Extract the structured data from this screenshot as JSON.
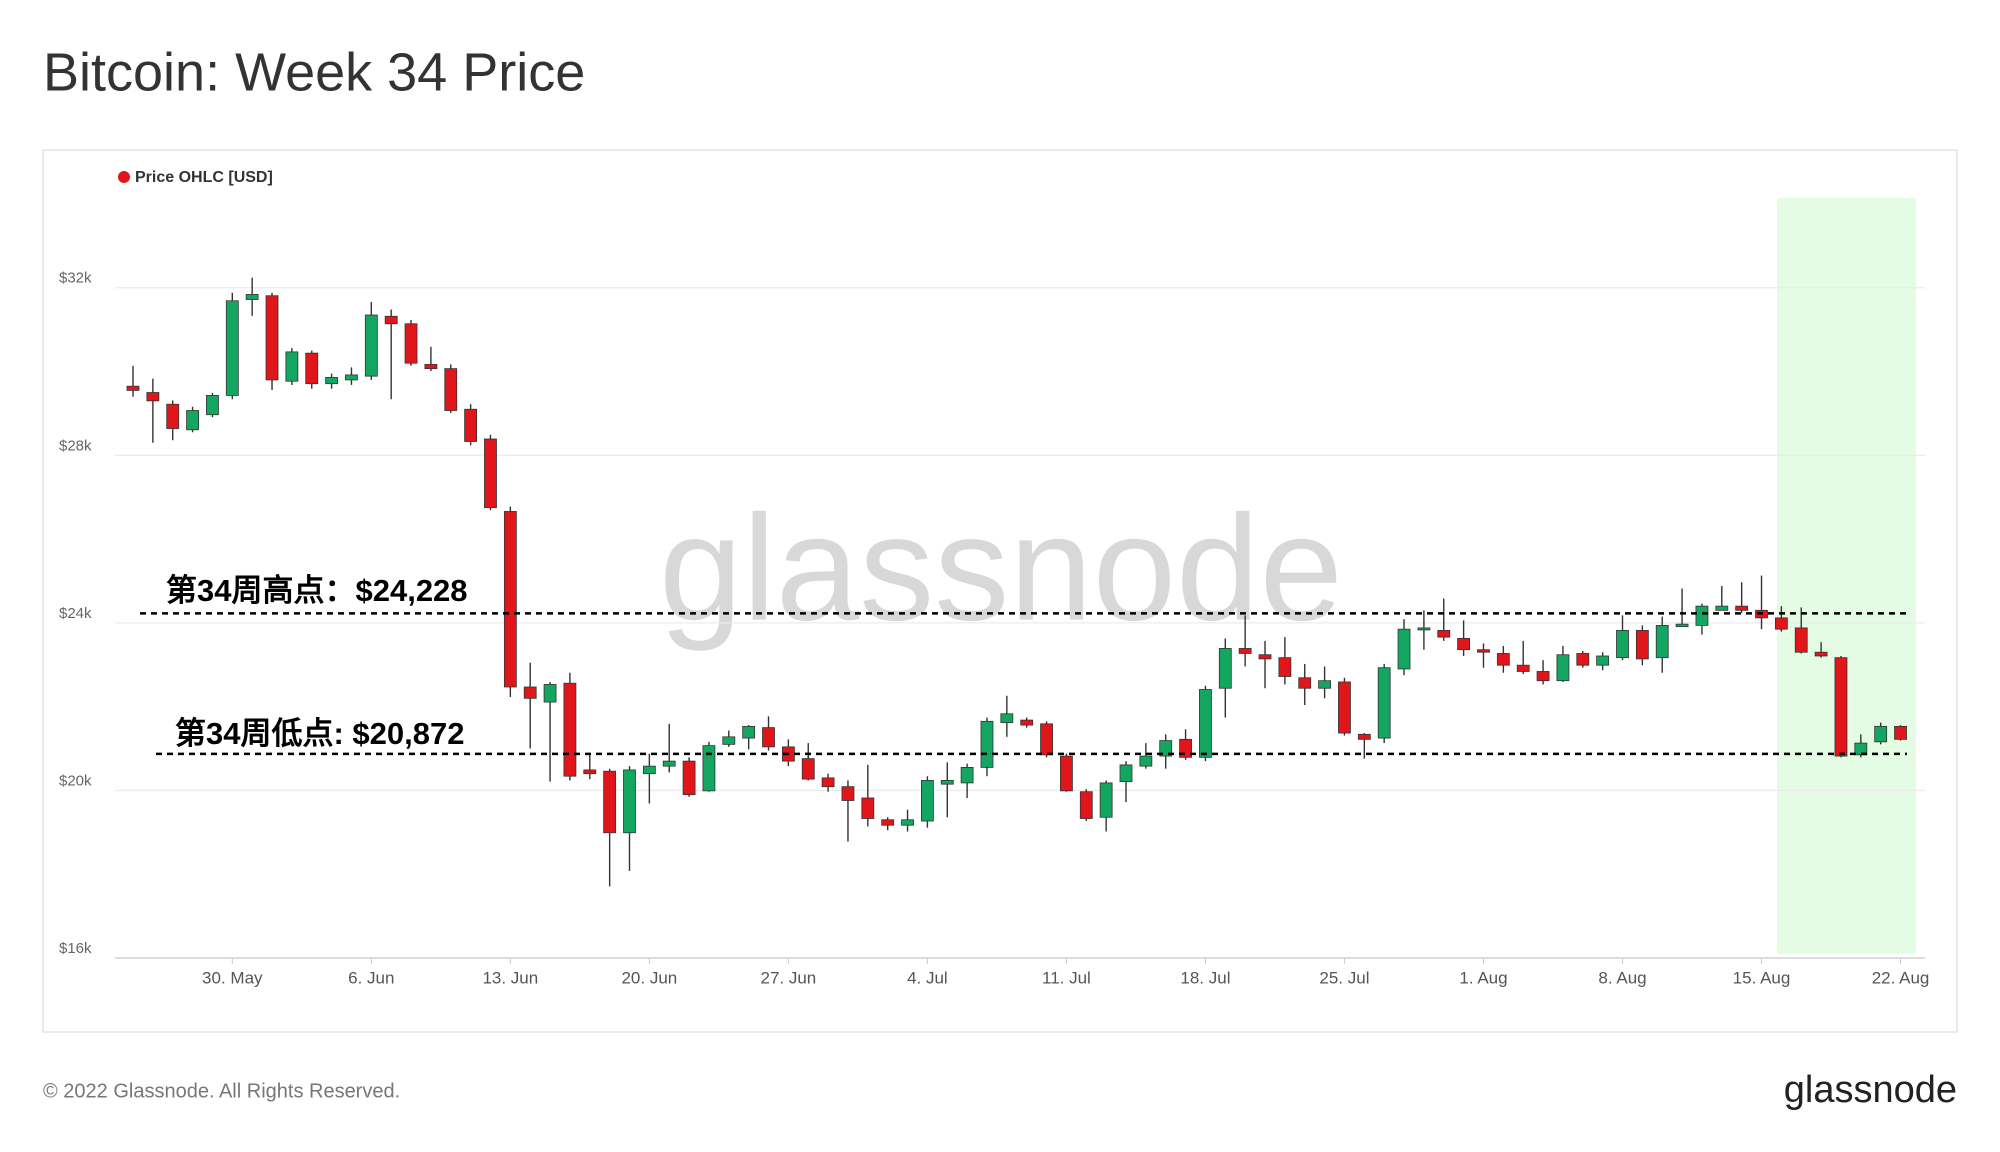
{
  "chart_data": {
    "type": "candlestick",
    "title": "Bitcoin: Week 34 Price",
    "watermark": "glassnode",
    "footer": "© 2022 Glassnode. All Rights Reserved.",
    "brand": "glassnode",
    "legend": "top-left",
    "grid": true,
    "up_color": "#13a661",
    "down_color": "#e0161b",
    "ylim": [
      16000,
      34000
    ],
    "yticks": [
      {
        "value": 16000,
        "label": "$16k"
      },
      {
        "value": 20000,
        "label": "$20k"
      },
      {
        "value": 24000,
        "label": "$24k"
      },
      {
        "value": 28000,
        "label": "$28k"
      },
      {
        "value": 32000,
        "label": "$32k"
      }
    ],
    "annotations": [
      {
        "text": "第34周高点：$24,228",
        "value": 24228
      },
      {
        "text": "第34周低点: $20,872",
        "value": 20872
      }
    ],
    "categories": [
      null,
      null,
      null,
      null,
      null,
      "30. May",
      null,
      null,
      null,
      null,
      null,
      null,
      "6. Jun",
      null,
      null,
      null,
      null,
      null,
      null,
      "13. Jun",
      null,
      null,
      null,
      null,
      null,
      null,
      "20. Jun",
      null,
      null,
      null,
      null,
      null,
      null,
      "27. Jun",
      null,
      null,
      null,
      null,
      null,
      null,
      "4. Jul",
      null,
      null,
      null,
      null,
      null,
      null,
      "11. Jul",
      null,
      null,
      null,
      null,
      null,
      null,
      "18. Jul",
      null,
      null,
      null,
      null,
      null,
      null,
      "25. Jul",
      null,
      null,
      null,
      null,
      null,
      null,
      "1. Aug",
      null,
      null,
      null,
      null,
      null,
      null,
      "8. Aug",
      null,
      null,
      null,
      null,
      null,
      null,
      "15. Aug",
      null,
      null,
      null,
      null,
      null,
      null,
      "22. Aug"
    ],
    "series": [
      {
        "name": "Price OHLC [USD]",
        "color": "#e0161b",
        "open": [
          29650,
          29500,
          29220,
          28610,
          28970,
          29430,
          31720,
          31810,
          29770,
          30440,
          29710,
          29800,
          29890,
          31320,
          31140,
          30170,
          30070,
          29100,
          28390,
          26660,
          22470,
          22110,
          22560,
          20490,
          20460,
          18990,
          20400,
          20580,
          20700,
          19990,
          21100,
          21250,
          21500,
          21040,
          20760,
          20300,
          20090,
          19820,
          19300,
          19170,
          19270,
          20150,
          20180,
          20550,
          21620,
          21680,
          21590,
          20820,
          19970,
          19360,
          20210,
          20580,
          20820,
          21220,
          20790,
          22440,
          23390,
          23240,
          23170,
          22690,
          22440,
          22590,
          21340,
          21250,
          22900,
          23850,
          23820,
          23630,
          23360,
          23270,
          22990,
          22840,
          22620,
          23270,
          22990,
          23170,
          23820,
          23170,
          23910,
          23940,
          24300,
          24400,
          24300,
          24120,
          23880,
          23300,
          23170,
          20850,
          21160,
          21530
        ],
        "high": [
          30135,
          29830,
          29310,
          29160,
          29490,
          31880,
          32240,
          31880,
          30560,
          30500,
          29950,
          30100,
          31660,
          31480,
          31230,
          30590,
          30170,
          29220,
          28490,
          26780,
          23050,
          22590,
          22810,
          20880,
          20520,
          20580,
          20880,
          21590,
          20790,
          21160,
          21430,
          21560,
          21770,
          21220,
          21130,
          20400,
          20240,
          20610,
          19360,
          19540,
          20340,
          20670,
          20640,
          21740,
          22260,
          21740,
          21650,
          20880,
          20030,
          20240,
          20700,
          21130,
          21340,
          21460,
          22500,
          23630,
          24180,
          23570,
          23660,
          23020,
          22960,
          22690,
          21370,
          23020,
          24090,
          24300,
          24580,
          24060,
          23510,
          23450,
          23570,
          23110,
          23450,
          23330,
          23300,
          24180,
          23940,
          24150,
          24820,
          24460,
          24880,
          24970,
          25130,
          24400,
          24370,
          23540,
          23210,
          21340,
          21620,
          21560
        ],
        "low": [
          29400,
          28300,
          28360,
          28550,
          28910,
          29340,
          31330,
          29560,
          29680,
          29590,
          29590,
          29680,
          29800,
          29340,
          30140,
          30010,
          29010,
          28240,
          26690,
          22230,
          21000,
          20210,
          20240,
          20270,
          17710,
          18080,
          19690,
          20430,
          19850,
          19970,
          21040,
          20980,
          20950,
          20580,
          20240,
          19970,
          18780,
          19140,
          19050,
          19020,
          19110,
          19360,
          19820,
          20340,
          21280,
          21500,
          20790,
          19970,
          19270,
          19020,
          19720,
          20520,
          20520,
          20730,
          20700,
          21740,
          22960,
          22440,
          22530,
          22040,
          22200,
          21310,
          20760,
          21130,
          22750,
          23360,
          23570,
          23210,
          22930,
          22810,
          22780,
          22530,
          22590,
          22930,
          22870,
          23110,
          22990,
          22810,
          23940,
          23720,
          24300,
          24240,
          23850,
          23790,
          23270,
          23170,
          20790,
          20790,
          21100,
          21190
        ],
        "close": [
          29550,
          29300,
          28640,
          29070,
          29430,
          31690,
          31840,
          29800,
          30470,
          29710,
          29860,
          29920,
          31350,
          31140,
          30200,
          30070,
          29070,
          28330,
          26750,
          22470,
          22200,
          22530,
          20340,
          20400,
          18990,
          20490,
          20580,
          20700,
          19900,
          21070,
          21280,
          21530,
          21040,
          20700,
          20270,
          20090,
          19760,
          19330,
          19170,
          19300,
          20240,
          20240,
          20550,
          21650,
          21830,
          21560,
          20850,
          19990,
          19330,
          20180,
          20610,
          20820,
          21190,
          20790,
          22410,
          23390,
          23270,
          23140,
          22720,
          22440,
          22620,
          21370,
          21220,
          22930,
          23850,
          23880,
          23660,
          23360,
          23300,
          22990,
          22840,
          22620,
          23240,
          22990,
          23210,
          23820,
          23140,
          23940,
          23970,
          24400,
          24400,
          24300,
          24120,
          23850,
          23300,
          23210,
          20820,
          21130,
          21530,
          21220
        ]
      }
    ]
  }
}
